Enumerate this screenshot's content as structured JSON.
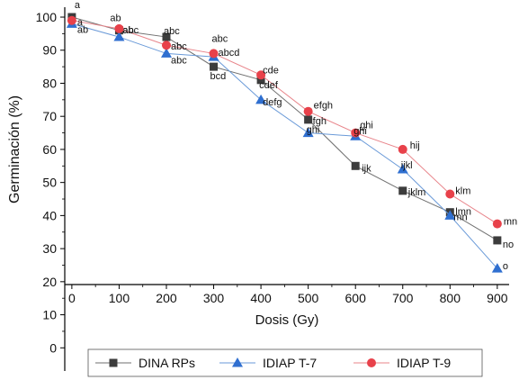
{
  "chart_data": {
    "type": "line",
    "title": "",
    "xlabel": "Dosis (Gy)",
    "ylabel": "Germinación (%)",
    "xlim": [
      -15,
      925
    ],
    "ylim": [
      -7,
      103
    ],
    "x_ticks": [
      "0",
      "100",
      "200",
      "300",
      "400",
      "500",
      "600",
      "700",
      "800",
      "900"
    ],
    "y_ticks": [
      "0",
      "10",
      "20",
      "30",
      "40",
      "50",
      "60",
      "70",
      "80",
      "90",
      "100"
    ],
    "grid": false,
    "legend_position": "bottom",
    "x": [
      0,
      100,
      200,
      300,
      400,
      500,
      600,
      700,
      800,
      900
    ],
    "series": [
      {
        "name": "DINA RPs",
        "marker": "square",
        "color": "#3c3c3c",
        "line_color": "#6f6f6f",
        "values": [
          100,
          96,
          94,
          85,
          81,
          69,
          55,
          47.5,
          41,
          32.5
        ],
        "labels": [
          "a",
          "ab",
          "abc",
          "bcd",
          "cdef",
          "fgh",
          "ijk",
          "jklm",
          "lmn",
          "no"
        ]
      },
      {
        "name": "IDIAP T-7",
        "marker": "triangle",
        "color": "#2f6fd0",
        "line_color": "#6a9ad8",
        "values": [
          98,
          94,
          89,
          88,
          75,
          65,
          64,
          54,
          40,
          24
        ],
        "labels": [
          "ab",
          "abc",
          "abc",
          "abcd",
          "defg",
          "ghi",
          "ghi",
          "ijkl",
          "mn",
          "o"
        ]
      },
      {
        "name": "IDIAP T-9",
        "marker": "circle",
        "color": "#e8414a",
        "line_color": "#e8848a",
        "values": [
          99,
          96.5,
          91.5,
          89,
          82.5,
          71.5,
          65,
          60,
          46.5,
          37.5
        ],
        "labels": [
          "a",
          "ab",
          "abc",
          "abc",
          "cde",
          "efgh",
          "ghi",
          "hij",
          "klm",
          "mn"
        ]
      }
    ]
  }
}
